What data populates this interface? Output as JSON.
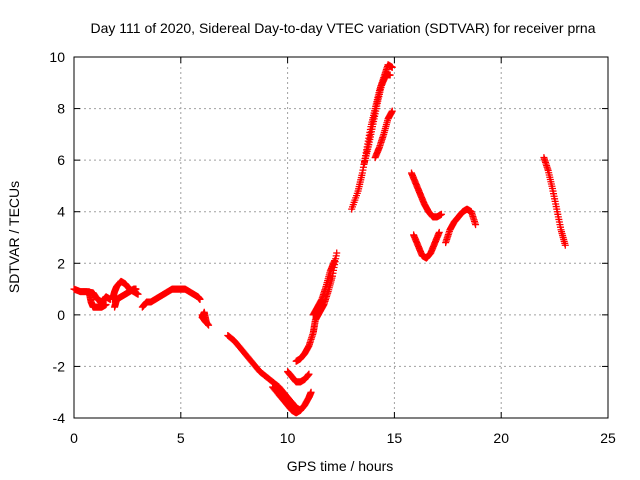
{
  "chart_data": {
    "type": "scatter",
    "title": "Day 111 of 2020, Sidereal Day-to-day VTEC variation (SDTVAR) for receiver prna",
    "xlabel": "GPS time / hours",
    "ylabel": "SDTVAR / TECUs",
    "xlim": [
      0,
      25
    ],
    "ylim": [
      -4,
      10
    ],
    "xticks": [
      "0",
      "5",
      "10",
      "15",
      "20",
      "25"
    ],
    "yticks": [
      "-4",
      "-2",
      "0",
      "2",
      "4",
      "6",
      "8",
      "10"
    ],
    "grid": true,
    "marker": "plus",
    "color": "#ff0000",
    "series": [
      {
        "name": "SDTVAR",
        "segments": [
          [
            [
              0.0,
              1.0
            ],
            [
              0.3,
              0.9
            ],
            [
              0.6,
              0.9
            ],
            [
              0.9,
              0.85
            ],
            [
              1.1,
              0.6
            ],
            [
              1.3,
              0.5
            ],
            [
              1.5,
              0.7
            ],
            [
              1.7,
              0.6
            ]
          ],
          [
            [
              0.7,
              0.9
            ],
            [
              0.8,
              0.5
            ],
            [
              0.9,
              0.3
            ],
            [
              1.1,
              0.3
            ],
            [
              1.3,
              0.3
            ],
            [
              1.5,
              0.4
            ]
          ],
          [
            [
              1.9,
              0.3
            ],
            [
              2.0,
              0.6
            ],
            [
              2.2,
              0.7
            ],
            [
              2.4,
              0.8
            ],
            [
              2.6,
              0.9
            ],
            [
              2.8,
              1.0
            ],
            [
              2.9,
              1.0
            ]
          ],
          [
            [
              1.8,
              0.6
            ],
            [
              1.9,
              0.9
            ],
            [
              2.0,
              1.1
            ],
            [
              2.2,
              1.3
            ],
            [
              2.4,
              1.2
            ],
            [
              2.6,
              1.0
            ],
            [
              2.8,
              0.9
            ],
            [
              3.0,
              0.8
            ]
          ],
          [
            [
              3.2,
              0.3
            ],
            [
              3.4,
              0.5
            ],
            [
              3.6,
              0.5
            ],
            [
              3.8,
              0.6
            ],
            [
              4.0,
              0.7
            ],
            [
              4.2,
              0.8
            ],
            [
              4.4,
              0.9
            ],
            [
              4.6,
              1.0
            ],
            [
              4.8,
              1.0
            ],
            [
              5.0,
              1.0
            ],
            [
              5.2,
              1.0
            ],
            [
              5.4,
              0.9
            ],
            [
              5.6,
              0.8
            ],
            [
              5.8,
              0.7
            ],
            [
              5.9,
              0.6
            ]
          ],
          [
            [
              6.0,
              0.0
            ],
            [
              6.1,
              -0.2
            ],
            [
              6.2,
              -0.3
            ],
            [
              6.1,
              0.1
            ],
            [
              6.0,
              -0.1
            ],
            [
              6.3,
              -0.4
            ]
          ],
          [
            [
              7.2,
              -0.8
            ],
            [
              7.5,
              -1.0
            ],
            [
              7.8,
              -1.3
            ],
            [
              8.1,
              -1.6
            ],
            [
              8.4,
              -1.9
            ],
            [
              8.7,
              -2.2
            ],
            [
              9.0,
              -2.4
            ],
            [
              9.3,
              -2.6
            ],
            [
              9.6,
              -2.8
            ],
            [
              9.9,
              -3.1
            ],
            [
              10.2,
              -3.4
            ],
            [
              10.4,
              -3.6
            ],
            [
              10.6,
              -3.7
            ],
            [
              10.8,
              -3.5
            ],
            [
              11.0,
              -3.2
            ],
            [
              11.1,
              -3.0
            ]
          ],
          [
            [
              9.3,
              -2.8
            ],
            [
              9.6,
              -3.1
            ],
            [
              9.8,
              -3.3
            ],
            [
              10.0,
              -3.5
            ],
            [
              10.2,
              -3.7
            ],
            [
              10.4,
              -3.8
            ],
            [
              10.6,
              -3.7
            ]
          ],
          [
            [
              10.0,
              -2.2
            ],
            [
              10.2,
              -2.4
            ],
            [
              10.4,
              -2.6
            ],
            [
              10.6,
              -2.6
            ],
            [
              10.8,
              -2.5
            ],
            [
              11.0,
              -2.3
            ]
          ],
          [
            [
              10.4,
              -1.8
            ],
            [
              10.6,
              -1.7
            ],
            [
              10.8,
              -1.5
            ],
            [
              11.0,
              -1.2
            ],
            [
              11.2,
              -0.7
            ],
            [
              11.3,
              -0.2
            ],
            [
              11.5,
              0.1
            ],
            [
              11.7,
              0.4
            ],
            [
              11.9,
              0.9
            ],
            [
              12.1,
              1.5
            ],
            [
              12.3,
              2.4
            ]
          ],
          [
            [
              11.2,
              0.0
            ],
            [
              11.4,
              0.3
            ],
            [
              11.6,
              0.6
            ],
            [
              11.8,
              1.1
            ],
            [
              12.0,
              1.7
            ],
            [
              12.2,
              2.1
            ]
          ],
          [
            [
              13.0,
              4.1
            ],
            [
              13.3,
              4.8
            ],
            [
              13.5,
              5.5
            ],
            [
              13.7,
              6.4
            ],
            [
              13.9,
              7.3
            ],
            [
              14.1,
              8.0
            ],
            [
              14.3,
              8.7
            ],
            [
              14.5,
              9.2
            ],
            [
              14.7,
              9.7
            ],
            [
              14.9,
              9.6
            ]
          ],
          [
            [
              13.6,
              5.9
            ],
            [
              13.8,
              6.6
            ],
            [
              14.0,
              7.4
            ],
            [
              14.2,
              8.2
            ],
            [
              14.4,
              8.9
            ],
            [
              14.6,
              9.3
            ],
            [
              14.8,
              9.3
            ]
          ],
          [
            [
              14.1,
              6.1
            ],
            [
              14.3,
              6.5
            ],
            [
              14.5,
              7.0
            ],
            [
              14.7,
              7.6
            ],
            [
              14.9,
              7.9
            ]
          ],
          [
            [
              15.8,
              5.5
            ],
            [
              16.0,
              5.1
            ],
            [
              16.2,
              4.7
            ],
            [
              16.4,
              4.3
            ],
            [
              16.6,
              4.0
            ],
            [
              16.8,
              3.8
            ],
            [
              17.0,
              3.8
            ],
            [
              17.2,
              3.9
            ]
          ],
          [
            [
              15.9,
              3.1
            ],
            [
              16.1,
              2.7
            ],
            [
              16.3,
              2.3
            ],
            [
              16.5,
              2.2
            ],
            [
              16.7,
              2.4
            ],
            [
              16.9,
              2.8
            ],
            [
              17.1,
              3.2
            ]
          ],
          [
            [
              17.4,
              2.8
            ],
            [
              17.6,
              3.3
            ],
            [
              17.8,
              3.6
            ],
            [
              18.0,
              3.8
            ],
            [
              18.2,
              4.0
            ],
            [
              18.4,
              4.1
            ],
            [
              18.6,
              4.0
            ],
            [
              18.8,
              3.5
            ]
          ],
          [
            [
              22.0,
              6.1
            ],
            [
              22.2,
              5.6
            ],
            [
              22.4,
              4.9
            ],
            [
              22.6,
              4.1
            ],
            [
              22.8,
              3.3
            ],
            [
              23.0,
              2.7
            ]
          ]
        ]
      }
    ]
  }
}
